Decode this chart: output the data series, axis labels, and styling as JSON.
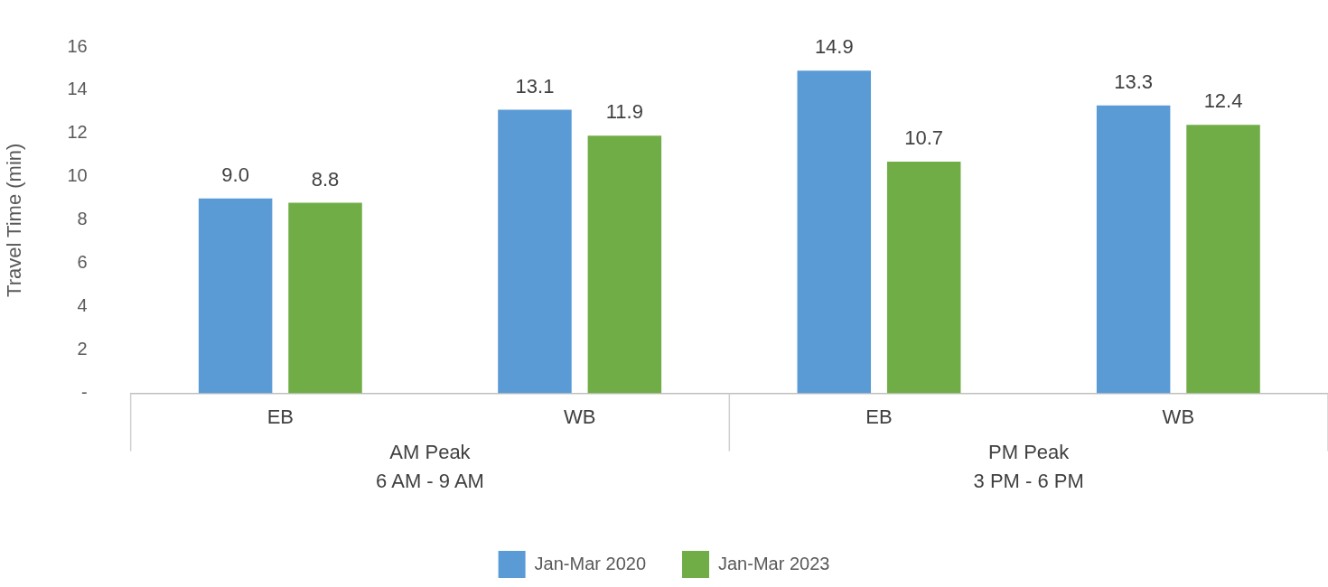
{
  "chart_data": {
    "type": "bar",
    "ylabel": "Travel Time (min)",
    "categories": [
      "EB",
      "WB",
      "EB",
      "WB"
    ],
    "series": [
      {
        "name": "Jan-Mar 2020",
        "color": "#5b9bd5",
        "values": [
          9.0,
          13.1,
          14.9,
          13.3
        ],
        "value_labels": [
          "9.0",
          "13.1",
          "14.9",
          "13.3"
        ]
      },
      {
        "name": "Jan-Mar 2023",
        "color": "#70ad47",
        "values": [
          8.8,
          11.9,
          10.7,
          12.4
        ],
        "value_labels": [
          "8.8",
          "11.9",
          "10.7",
          "12.4"
        ]
      }
    ],
    "ylim": [
      0,
      16
    ],
    "yticks": [
      {
        "value": 0,
        "label": "-"
      },
      2,
      4,
      6,
      8,
      10,
      12,
      14,
      16
    ],
    "annotations": [
      "AM Peak\n6 AM - 9 AM",
      "PM Peak\n3 PM - 6 PM"
    ],
    "grid": false,
    "legend": "bottom"
  }
}
